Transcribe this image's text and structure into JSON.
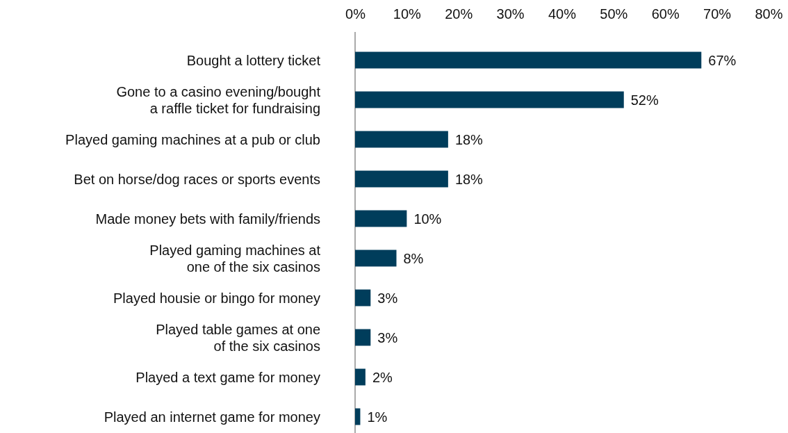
{
  "chart_data": {
    "type": "bar",
    "orientation": "horizontal",
    "categories": [
      "Bought a lottery ticket",
      "Gone to a casino evening/bought\na raffle ticket for fundraising",
      "Played gaming machines at a pub or club",
      "Bet on horse/dog races or sports events",
      "Made money bets with family/friends",
      "Played gaming machines at\none of the six casinos",
      "Played housie or bingo for money",
      "Played table games at one\nof the six casinos",
      "Played a text game for money",
      "Played an internet game for money"
    ],
    "values": [
      67,
      52,
      18,
      18,
      10,
      8,
      3,
      3,
      2,
      1
    ],
    "value_labels": [
      "67%",
      "52%",
      "18%",
      "18%",
      "10%",
      "8%",
      "3%",
      "3%",
      "2%",
      "1%"
    ],
    "color": "#003d5b",
    "xlim": [
      0,
      80
    ],
    "xticks": [
      {
        "value": 0,
        "label": "0%"
      },
      {
        "value": 10,
        "label": "10%"
      },
      {
        "value": 20,
        "label": "20%"
      },
      {
        "value": 30,
        "label": "30%"
      },
      {
        "value": 40,
        "label": "40%"
      },
      {
        "value": 50,
        "label": "50%"
      },
      {
        "value": 60,
        "label": "60%"
      },
      {
        "value": 70,
        "label": "70%"
      },
      {
        "value": 80,
        "label": "80%"
      }
    ],
    "grid": false
  }
}
